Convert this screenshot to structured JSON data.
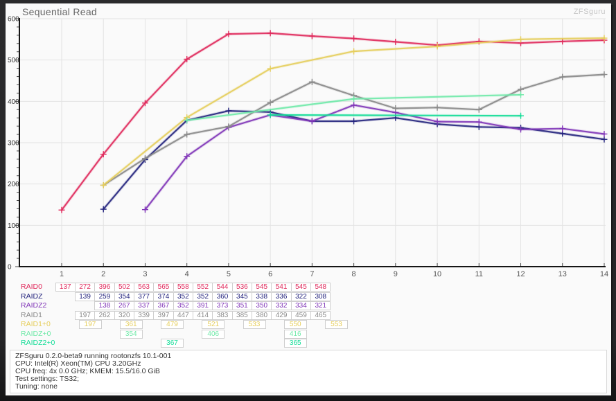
{
  "header": {
    "title": "Sequential Read",
    "brand": "ZFSguru"
  },
  "chart_data": {
    "type": "line",
    "title": "Sequential Read",
    "xlabel": "",
    "ylabel": "",
    "x": [
      1,
      2,
      3,
      4,
      5,
      6,
      7,
      8,
      9,
      10,
      11,
      12,
      13,
      14
    ],
    "ylim": [
      0,
      600
    ],
    "yticks": [
      0,
      100,
      200,
      300,
      400,
      500,
      600
    ],
    "grid": true,
    "marker": "plus",
    "legend_position": "table-below-chart",
    "series": [
      {
        "name": "RAID0",
        "color": "#e02a5c",
        "values": [
          137,
          272,
          396,
          502,
          563,
          565,
          558,
          552,
          544,
          536,
          545,
          541,
          545,
          548
        ]
      },
      {
        "name": "RAIDZ",
        "color": "#23237d",
        "values": [
          null,
          139,
          259,
          354,
          377,
          374,
          352,
          352,
          360,
          345,
          338,
          336,
          322,
          308
        ]
      },
      {
        "name": "RAIDZ2",
        "color": "#8136b8",
        "values": [
          null,
          null,
          138,
          267,
          337,
          367,
          352,
          391,
          373,
          351,
          350,
          332,
          334,
          321
        ]
      },
      {
        "name": "RAID1",
        "color": "#8a8a8a",
        "values": [
          null,
          197,
          262,
          320,
          339,
          397,
          447,
          414,
          383,
          385,
          380,
          429,
          459,
          465
        ]
      },
      {
        "name": "RAID1+0",
        "color": "#e6ce5c",
        "values": [
          null,
          197,
          null,
          361,
          null,
          479,
          null,
          521,
          null,
          533,
          null,
          550,
          null,
          553
        ]
      },
      {
        "name": "RAIDZ+0",
        "color": "#6fe9a8",
        "values": [
          null,
          null,
          null,
          354,
          null,
          null,
          null,
          406,
          null,
          null,
          null,
          416,
          null,
          null
        ]
      },
      {
        "name": "RAIDZ2+0",
        "color": "#12dd97",
        "values": [
          null,
          null,
          null,
          null,
          null,
          367,
          null,
          null,
          null,
          null,
          null,
          365,
          null,
          null
        ]
      }
    ]
  },
  "footer": {
    "lines": [
      "ZFSguru 0.2.0-beta9 running rootonzfs 10.1-001",
      "CPU: Intel(R) Xeon(TM) CPU 3.20GHz",
      "CPU freq: 4x 0.0 GHz; KMEM: 15.5/16.0 GiB",
      "Test settings: TS32;",
      "Tuning: none"
    ]
  }
}
